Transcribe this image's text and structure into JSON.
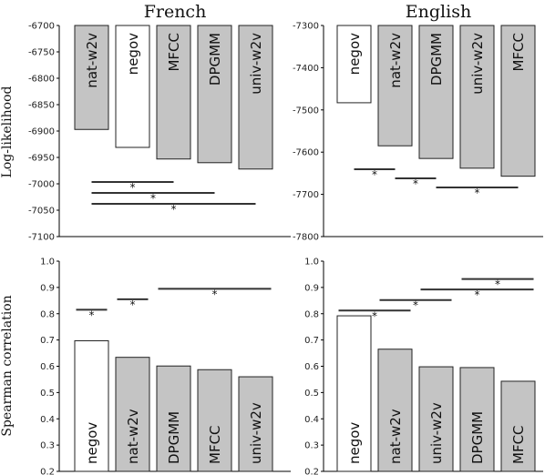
{
  "titles": {
    "left": "French",
    "right": "English"
  },
  "ylabels": {
    "top": "Log-likelihood",
    "bottom": "Spearman correlation"
  },
  "colors": {
    "gray": "#c4c4c4",
    "white": "#ffffff",
    "line": "#333333"
  },
  "chart_data": [
    {
      "type": "bar",
      "title": "French",
      "ylabel": "Log-likelihood",
      "ylim": [
        -7100,
        -6700
      ],
      "inverted_bars": true,
      "yticks": [
        -6700,
        -6750,
        -6800,
        -6850,
        -6900,
        -6950,
        -7000,
        -7050,
        -7100
      ],
      "categories": [
        "nat-w2v",
        "negov",
        "MFCC",
        "DPGMM",
        "univ-w2v"
      ],
      "values": [
        -6897,
        -6931,
        -6953,
        -6960,
        -6972
      ],
      "fill": [
        "gray",
        "white",
        "gray",
        "gray",
        "gray"
      ],
      "significance": [
        {
          "from": 0,
          "to": 2,
          "label": "*"
        },
        {
          "from": 0,
          "to": 3,
          "label": "*"
        },
        {
          "from": 0,
          "to": 4,
          "label": "*"
        }
      ]
    },
    {
      "type": "bar",
      "title": "English",
      "ylim": [
        -7800,
        -7300
      ],
      "inverted_bars": true,
      "yticks": [
        -7300,
        -7400,
        -7500,
        -7600,
        -7700,
        -7800
      ],
      "categories": [
        "negov",
        "nat-w2v",
        "DPGMM",
        "univ-w2v",
        "MFCC"
      ],
      "values": [
        -7483,
        -7585,
        -7615,
        -7638,
        -7657
      ],
      "fill": [
        "white",
        "gray",
        "gray",
        "gray",
        "gray"
      ],
      "significance": [
        {
          "from": 0,
          "to": 1,
          "label": "*"
        },
        {
          "from": 1,
          "to": 2,
          "label": "*"
        },
        {
          "from": 2,
          "to": 4,
          "label": "*"
        }
      ]
    },
    {
      "type": "bar",
      "ylabel": "Spearman correlation",
      "ylim": [
        0.2,
        1.0
      ],
      "yticks": [
        1.0,
        0.9,
        0.8,
        0.7,
        0.6,
        0.5,
        0.4,
        0.3,
        0.2
      ],
      "categories": [
        "negov",
        "nat-w2v",
        "DPGMM",
        "MFCC",
        "univ-w2v"
      ],
      "values": [
        0.697,
        0.634,
        0.601,
        0.587,
        0.56
      ],
      "fill": [
        "white",
        "gray",
        "gray",
        "gray",
        "gray"
      ],
      "significance": [
        {
          "from": 0,
          "to": 0,
          "label": "*",
          "y": 0.815
        },
        {
          "from": 1,
          "to": 1,
          "label": "*",
          "y": 0.855
        },
        {
          "from": 2,
          "to": 4,
          "label": "*",
          "y": 0.895
        }
      ]
    },
    {
      "type": "bar",
      "ylim": [
        0.2,
        1.0
      ],
      "yticks": [
        1.0,
        0.9,
        0.8,
        0.7,
        0.6,
        0.5,
        0.4,
        0.3,
        0.2
      ],
      "categories": [
        "negov",
        "nat-w2v",
        "univ-w2v",
        "DPGMM",
        "MFCC"
      ],
      "values": [
        0.792,
        0.665,
        0.598,
        0.595,
        0.543
      ],
      "fill": [
        "white",
        "gray",
        "gray",
        "gray",
        "gray"
      ],
      "significance": [
        {
          "from": 0,
          "to": 1,
          "label": "*",
          "y": 0.812
        },
        {
          "from": 1,
          "to": 2,
          "label": "*",
          "y": 0.852
        },
        {
          "from": 2,
          "to": 4,
          "label": "*",
          "y": 0.892
        },
        {
          "from": 3,
          "to": 4,
          "label": "*",
          "y": 0.932
        }
      ]
    }
  ]
}
